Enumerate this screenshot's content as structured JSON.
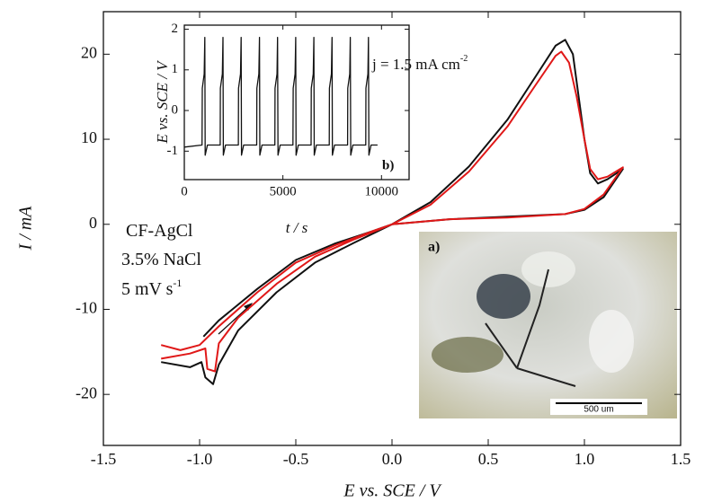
{
  "chart_data": [
    {
      "type": "line",
      "x_label": "E vs. SCE / V",
      "y_label": "I / mA",
      "xlim": [
        -1.5,
        1.5
      ],
      "ylim": [
        -26,
        25
      ],
      "xticks": [
        -1.5,
        {
          "value": -1,
          "label": "-1.0"
        },
        -0.5,
        {
          "value": 0,
          "label": "0.0"
        },
        0.5,
        {
          "value": 1,
          "label": "1.0"
        },
        1.5
      ],
      "yticks": [
        20,
        10,
        0,
        -10,
        -20
      ],
      "series": [
        {
          "color": "#111111",
          "x": [
            -0.98,
            -0.9,
            -0.7,
            -0.5,
            -0.3,
            -0.1,
            0,
            0.2,
            0.4,
            0.6,
            0.75,
            0.85,
            0.9,
            0.94,
            0.97,
            1.0,
            1.03,
            1.07,
            1.12,
            1.2,
            1.1,
            1.0,
            0.9,
            0.6,
            0.3,
            0,
            -0.2,
            -0.4,
            -0.6,
            -0.8,
            -0.9,
            -0.93,
            -0.97,
            -0.99,
            -1.05,
            -1.2
          ],
          "values": [
            -13.2,
            -11.3,
            -7.6,
            -4.2,
            -2.3,
            -0.8,
            0,
            2.6,
            6.8,
            12.3,
            17.5,
            21,
            21.7,
            20,
            15,
            10,
            6,
            4.8,
            5.3,
            6.5,
            3.2,
            1.7,
            1.2,
            0.9,
            0.6,
            0,
            -2.2,
            -4.5,
            -8,
            -12.5,
            -16.5,
            -18.8,
            -18,
            -16.2,
            -16.8,
            -16.2
          ]
        },
        {
          "color": "#e01818",
          "x": [
            -1.2,
            -1.1,
            -1.0,
            -0.9,
            -0.7,
            -0.5,
            -0.3,
            -0.1,
            0,
            0.2,
            0.4,
            0.6,
            0.75,
            0.85,
            0.88,
            0.92,
            0.96,
            1.0,
            1.03,
            1.07,
            1.12,
            1.2,
            1.1,
            1.0,
            0.9,
            0.6,
            0.3,
            0,
            -0.2,
            -0.4,
            -0.6,
            -0.8,
            -0.9,
            -0.92,
            -0.96,
            -0.97,
            -1.05,
            -1.2
          ],
          "values": [
            -14.2,
            -14.8,
            -14.2,
            -12,
            -8,
            -4.5,
            -2.5,
            -0.8,
            0,
            2.3,
            6.2,
            11.5,
            16.5,
            19.8,
            20.3,
            19,
            15,
            10,
            6.5,
            5.3,
            5.6,
            6.7,
            3.5,
            1.8,
            1.2,
            0.8,
            0.6,
            0,
            -1.8,
            -3.8,
            -7,
            -11,
            -14,
            -17.3,
            -17,
            -14.6,
            -15.2,
            -15.8
          ]
        }
      ],
      "annotations": [
        {
          "text": "CF-AgCl"
        },
        {
          "text": "3.5% NaCl"
        },
        {
          "text": "5 mV s",
          "sup": "-1"
        }
      ]
    },
    {
      "type": "line",
      "x_label": "t / s",
      "y_label": "E vs. SCE / V",
      "xlim": [
        0,
        11400
      ],
      "ylim": [
        -1.7,
        2.1
      ],
      "xticks": [
        0,
        5000,
        10000
      ],
      "yticks": [
        -1,
        0,
        1,
        2
      ],
      "panel_label": "b)",
      "series": [
        {
          "color": "#111111",
          "x": [
            0,
            900,
            910,
            1010,
            1040,
            1060,
            1170,
            1820,
            1830,
            1930,
            1960,
            1980,
            2090,
            2740,
            2750,
            2850,
            2880,
            2900,
            3010,
            3670,
            3680,
            3780,
            3810,
            3830,
            3940,
            4590,
            4600,
            4700,
            4730,
            4750,
            4860,
            5510,
            5520,
            5620,
            5650,
            5670,
            5780,
            6430,
            6440,
            6540,
            6570,
            6590,
            6700,
            7350,
            7360,
            7460,
            7490,
            7510,
            7620,
            8280,
            8290,
            8390,
            8420,
            8440,
            8550,
            9200,
            9210,
            9310,
            9340,
            9360,
            9470,
            9800
          ],
          "values": [
            -0.9,
            -0.85,
            0.55,
            0.9,
            1.8,
            -1.1,
            -0.85,
            -0.85,
            0.55,
            0.9,
            1.8,
            -1.1,
            -0.85,
            -0.85,
            0.55,
            0.9,
            1.8,
            -1.1,
            -0.85,
            -0.85,
            0.55,
            0.9,
            1.8,
            -1.1,
            -0.85,
            -0.85,
            0.55,
            0.9,
            1.8,
            -1.1,
            -0.85,
            -0.85,
            0.55,
            0.9,
            1.8,
            -1.1,
            -0.85,
            -0.85,
            0.55,
            0.9,
            1.8,
            -1.1,
            -0.85,
            -0.85,
            0.55,
            0.9,
            1.8,
            -1.1,
            -0.85,
            -0.85,
            0.55,
            0.9,
            1.8,
            -1.1,
            -0.85,
            -0.85,
            0.55,
            0.9,
            1.8,
            -1.1,
            -0.85,
            -0.85
          ]
        }
      ],
      "annotations": [
        {
          "text": "j = 1.5 mA cm",
          "sup": "-2"
        }
      ]
    }
  ],
  "photo": {
    "label": "a)",
    "scale_bar": "500 um"
  }
}
